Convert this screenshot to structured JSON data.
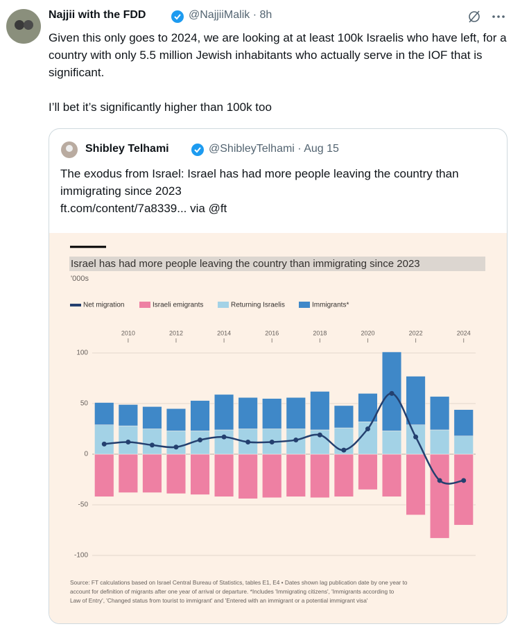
{
  "tweet": {
    "author": "Najjii with the FDD",
    "handle_time": "@NajjiiMalik · 8h",
    "paragraphs": [
      "Given this only goes to 2024, we are looking at at least 100k Israelis who have left, for a country with only 5.5 million Jewish inhabitants who actually serve in the IOF that is significant.",
      "I’ll bet it’s significantly higher than 100k too"
    ]
  },
  "quote": {
    "author": "Shibley Telhami",
    "handle_date": "@ShibleyTelhami · Aug 15",
    "text": "The exodus from Israel: Israel has had more people leaving the country than immigrating since 2023",
    "link": "ft.com/content/7a8339... via @ft"
  },
  "chart_data": {
    "type": "bar",
    "stacked": true,
    "title": "Israel has had more people leaving the country than immigrating since 2023",
    "subtitle": "'000s",
    "x": [
      2009,
      2010,
      2011,
      2012,
      2013,
      2014,
      2015,
      2016,
      2017,
      2018,
      2019,
      2020,
      2021,
      2022,
      2023,
      2024
    ],
    "xlim": [
      2008.5,
      2024.5
    ],
    "xticks": [
      2010,
      2012,
      2014,
      2016,
      2018,
      2020,
      2022,
      2024
    ],
    "ylim": [
      -100,
      100
    ],
    "yticks": [
      -100,
      -50,
      0,
      50,
      100
    ],
    "grid": true,
    "series": [
      {
        "name": "Net migration",
        "type": "line",
        "color": "#24406f",
        "values": [
          10,
          12,
          9,
          7,
          14,
          17,
          12,
          12,
          14,
          19,
          4,
          25,
          60,
          17,
          -26,
          -26
        ]
      },
      {
        "name": "Israeli emigrants",
        "color": "#ee80a3",
        "values": [
          -42,
          -38,
          -38,
          -39,
          -40,
          -42,
          -44,
          -43,
          -42,
          -43,
          -42,
          -35,
          -42,
          -60,
          -83,
          -70
        ]
      },
      {
        "name": "Returning Israelis",
        "color": "#a3d2e6",
        "values": [
          29,
          28,
          25,
          23,
          23,
          24,
          25,
          25,
          25,
          24,
          26,
          32,
          23,
          29,
          24,
          18
        ]
      },
      {
        "name": "Immigrants*",
        "color": "#3f88c8",
        "values": [
          22,
          21,
          22,
          22,
          30,
          35,
          31,
          30,
          31,
          38,
          22,
          28,
          78,
          48,
          33,
          26
        ]
      }
    ],
    "source": [
      "Source: FT calculations based on Israel Central Bureau of Statistics, tables E1, E4 • Dates shown lag publication date by one year to",
      "account for definition of migrants after one year of arrival or departure. *Includes 'Immigrating citizens', 'Immigrants according to",
      "Law of Entry', 'Changed status from tourist to immigrant' and 'Entered with an immigrant or a potential immigrant visa'"
    ]
  }
}
